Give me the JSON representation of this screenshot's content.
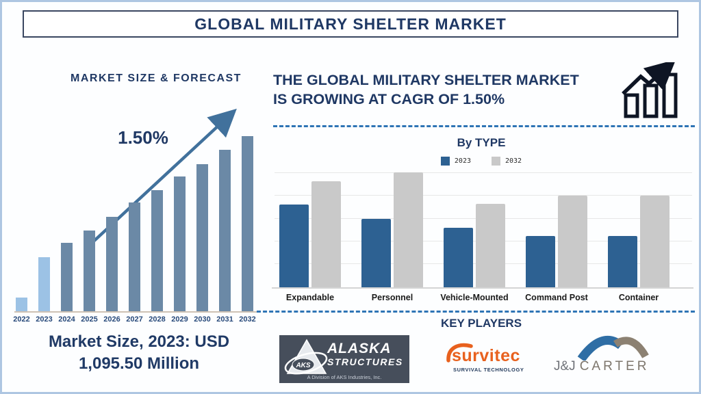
{
  "title": "GLOBAL MILITARY SHELTER MARKET",
  "left_panel": {
    "heading": "MARKET SIZE & FORECAST",
    "growth_label": "1.50%",
    "market_size_line1": "Market Size, 2023: USD",
    "market_size_line2": "1,095.50 Million"
  },
  "right_panel": {
    "heading_line1": "THE GLOBAL MILITARY SHELTER MARKET",
    "heading_line2": "IS GROWING AT CAGR OF 1.50%",
    "by_type_title": "By TYPE",
    "legend": {
      "items": [
        {
          "label": "2023",
          "color": "#2D6192"
        },
        {
          "label": "2032",
          "color": "#C9C9C9"
        }
      ]
    },
    "key_players_title": "KEY PLAYERS",
    "players": [
      {
        "name": "Alaska Structures",
        "badge": "AKS",
        "line1": "ALASKA",
        "line2": "STRUCTURES",
        "tagline": "A Division of AKS Industries, Inc."
      },
      {
        "name": "Survitec",
        "wordmark": "survitec",
        "tagline": "SURVIVAL TECHNOLOGY"
      },
      {
        "name": "J&J Carter",
        "prefix": "J&J",
        "main": "CARTER"
      }
    ]
  },
  "chart_data": [
    {
      "type": "bar",
      "name": "market-size-forecast",
      "title": "MARKET SIZE & FORECAST",
      "categories": [
        "2022",
        "2023",
        "2024",
        "2025",
        "2026",
        "2027",
        "2028",
        "2029",
        "2030",
        "2031",
        "2032"
      ],
      "values": [
        8,
        31,
        39,
        46,
        54,
        62,
        69,
        77,
        84,
        92,
        100
      ],
      "unit": "relative bar height index (2032 = 100); no value axis shown",
      "annotation": "1.50% CAGR trend arrow",
      "bar_color": "#6B89A6",
      "highlight_categories": [
        "2022",
        "2023"
      ],
      "highlight_color": "#9CC2E5",
      "grid": false,
      "legend": false
    },
    {
      "type": "bar",
      "name": "by-type",
      "title": "By TYPE",
      "categories": [
        "Expandable",
        "Personnel",
        "Vehicle-Mounted",
        "Command Post",
        "Container"
      ],
      "series": [
        {
          "name": "2023",
          "color": "#2D6192",
          "values": [
            71,
            59,
            51,
            44,
            44
          ]
        },
        {
          "name": "2032",
          "color": "#C9C9C9",
          "values": [
            91,
            99,
            72,
            79,
            79
          ]
        }
      ],
      "ylim": [
        0,
        100
      ],
      "unit": "relative bar height (% of plot height); no value axis shown",
      "grid": true,
      "legend_position": "top"
    }
  ],
  "colors": {
    "navy_text": "#1F3864",
    "frame_border": "#AEC6E2",
    "title_border": "#3A4660",
    "dashed_line": "#2E74B5",
    "trend_arrow": "#41719C",
    "forecast_bar": "#6B89A6",
    "forecast_bar_highlight": "#9CC2E5",
    "bytype_2023": "#2D6192",
    "bytype_2032": "#C9C9C9",
    "alaska_bg": "#464E5B",
    "survitec_orange": "#E8611E",
    "jj_blue_arc": "#2F6EA5",
    "jj_taupe_arc": "#8C8172"
  }
}
